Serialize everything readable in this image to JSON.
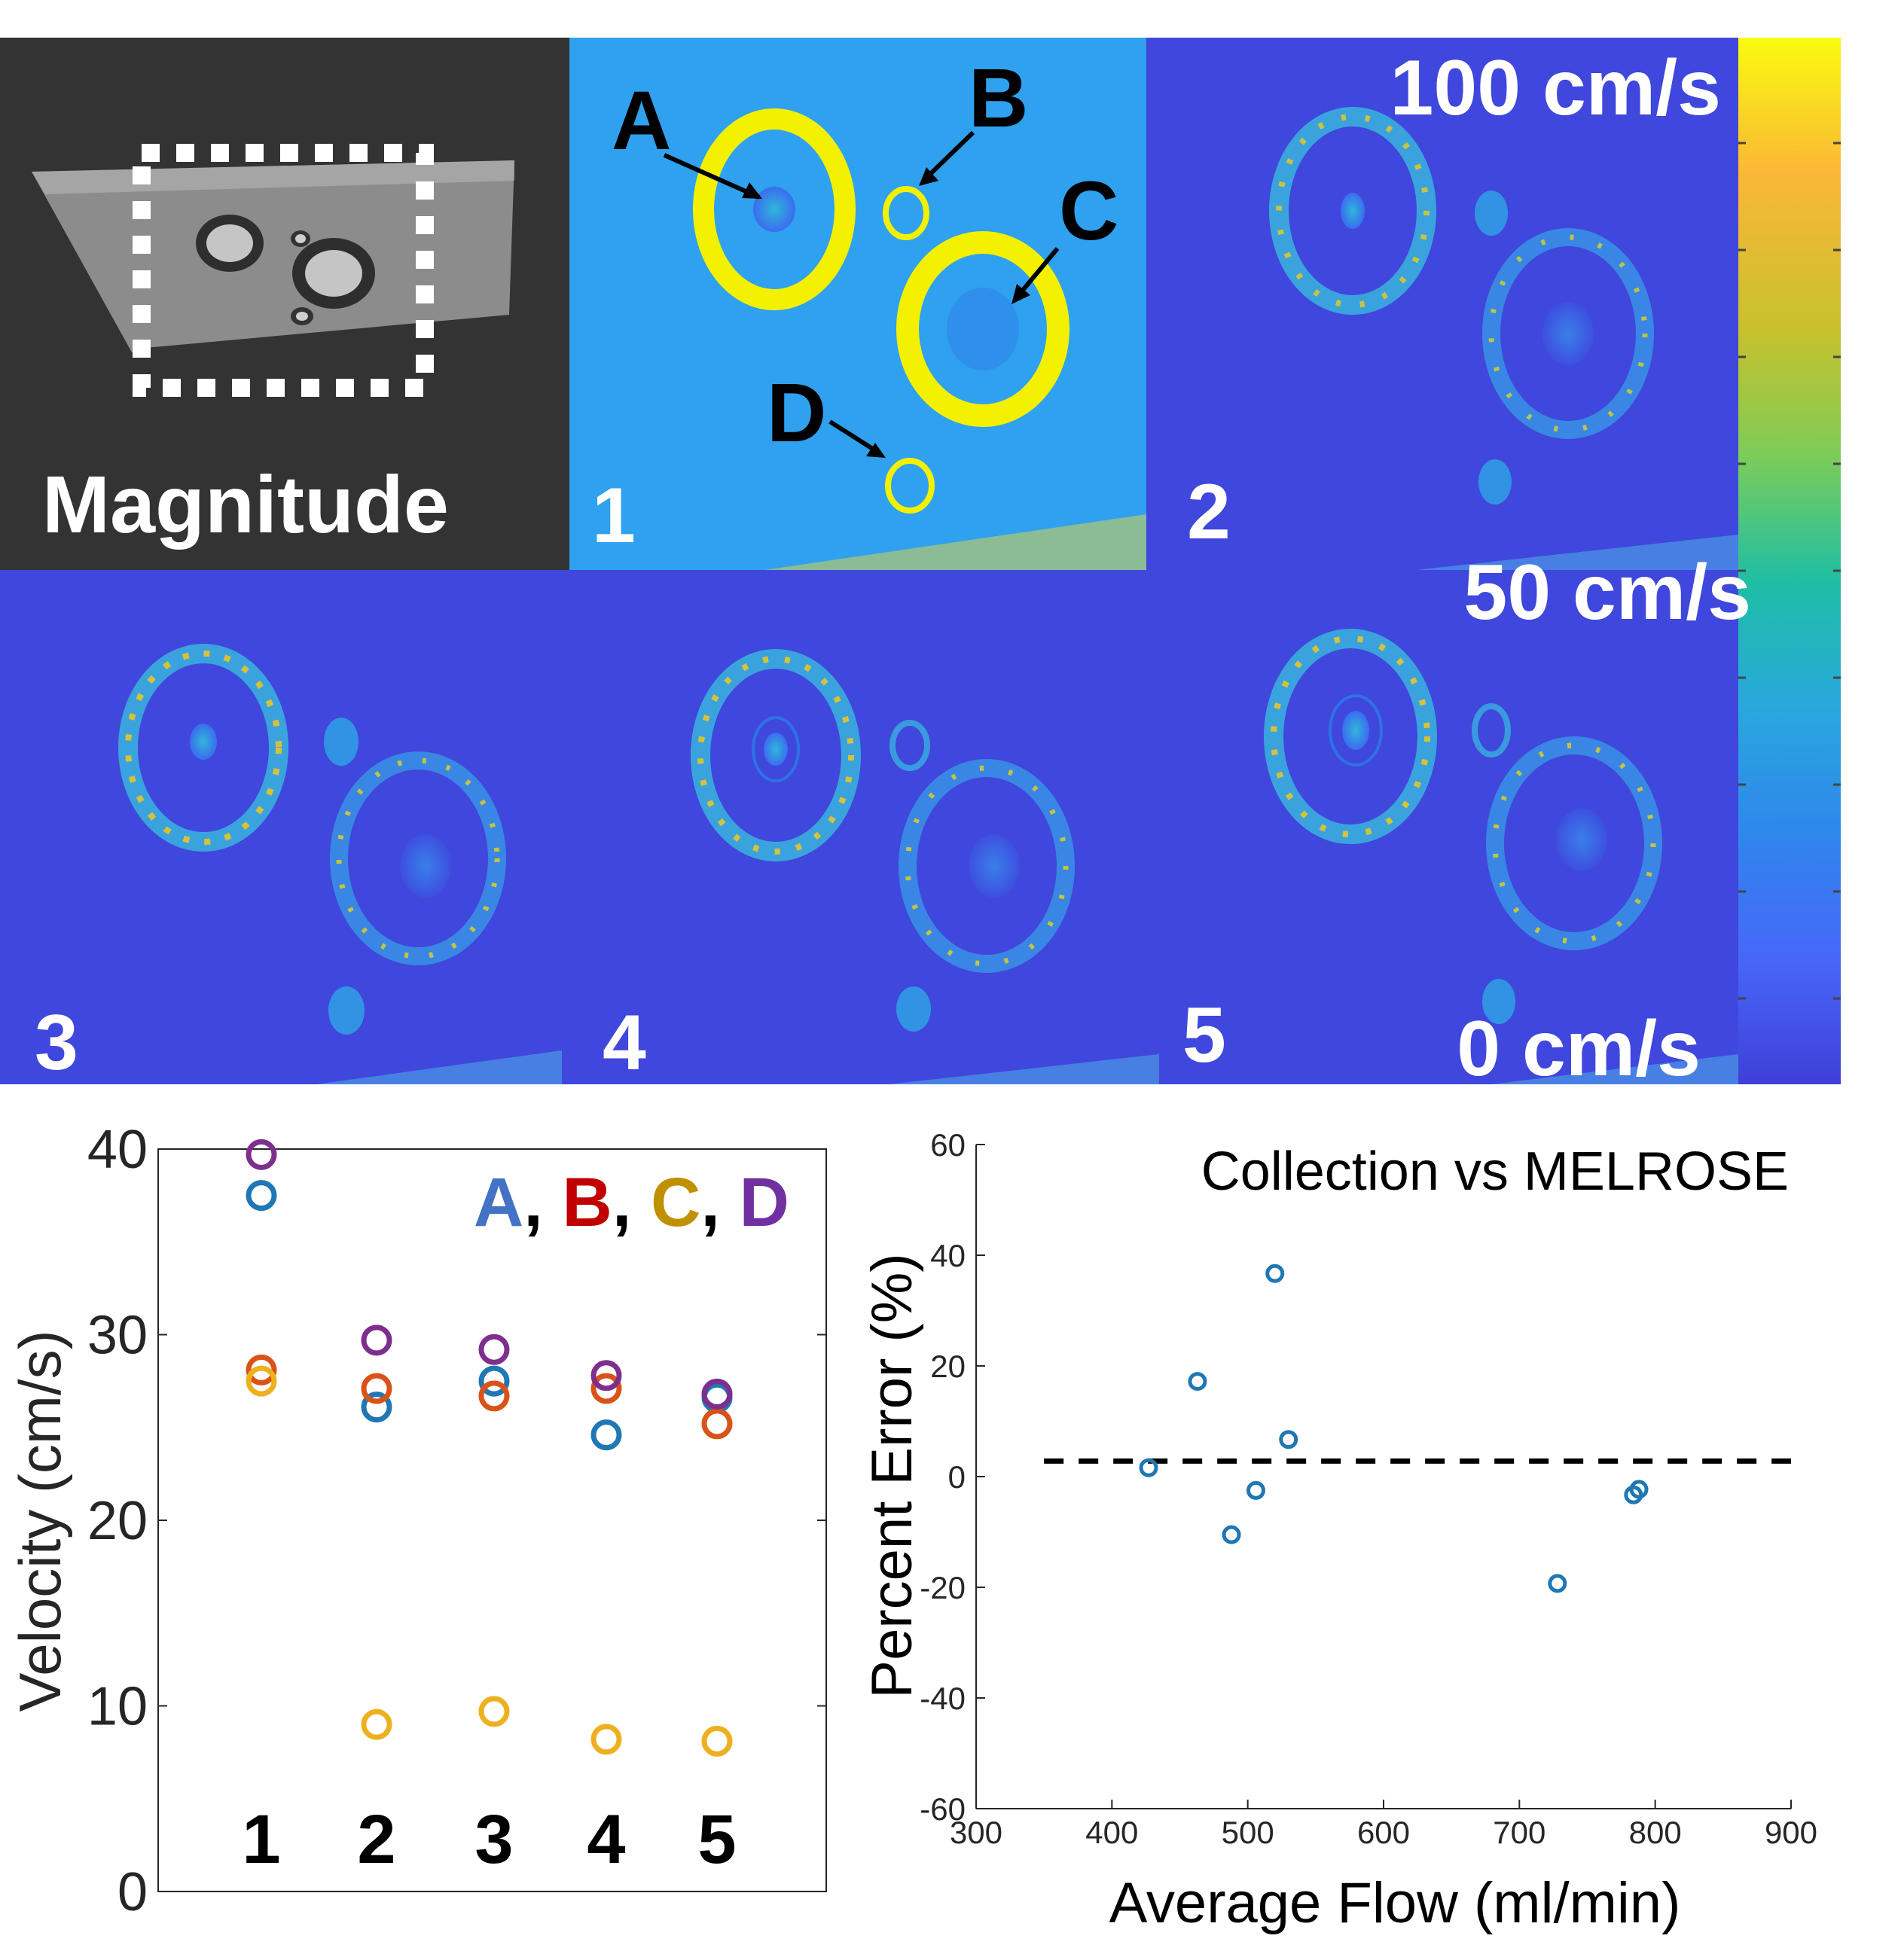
{
  "figure": {
    "panels": [
      {
        "id": "magnitude",
        "label": "Magnitude"
      },
      {
        "id": "p1",
        "label": "1"
      },
      {
        "id": "p2",
        "label": "2"
      },
      {
        "id": "p3",
        "label": "3"
      },
      {
        "id": "p4",
        "label": "4"
      },
      {
        "id": "p5",
        "label": "5"
      }
    ],
    "vessel_labels": [
      "A",
      "B",
      "C",
      "D"
    ],
    "colorbar": {
      "max_label": "100 cm/s",
      "mid_label": "50 cm/s",
      "min_label": "0 cm/s",
      "colors": [
        "#f9fb0e",
        "#fbb737",
        "#c7c12c",
        "#7ccc59",
        "#1fbea4",
        "#28a8dd",
        "#2f86ed",
        "#4767f9",
        "#3f3fd8"
      ]
    }
  },
  "colors": {
    "A": "#1f77b4",
    "B": "#d95319",
    "C": "#edb120",
    "D": "#7e2f8e",
    "legend_A": "#4472c4",
    "legend_B": "#c00000",
    "legend_C": "#bf9000",
    "legend_D": "#7030a0"
  },
  "chart_data": [
    {
      "type": "scatter",
      "title": "",
      "xlabel": "",
      "ylabel": "Velocity (cm/s)",
      "ylim": [
        0,
        40
      ],
      "yticks": [
        "0",
        "10",
        "20",
        "30",
        "40"
      ],
      "categories": [
        "1",
        "2",
        "3",
        "4",
        "5"
      ],
      "legend": [
        "A",
        "B",
        "C",
        "D"
      ],
      "series": [
        {
          "name": "A",
          "values": [
            37.5,
            26.1,
            27.5,
            24.6,
            26.6
          ]
        },
        {
          "name": "B",
          "values": [
            28.1,
            27.1,
            26.7,
            27.1,
            25.2
          ]
        },
        {
          "name": "C",
          "values": [
            27.5,
            9.0,
            9.7,
            8.2,
            8.1
          ]
        },
        {
          "name": "D",
          "values": [
            39.7,
            29.7,
            29.2,
            27.8,
            26.8
          ]
        }
      ]
    },
    {
      "type": "scatter",
      "title": "Collection vs MELROSE",
      "xlabel": "Average Flow (ml/min)",
      "ylabel": "Percent Error (%)",
      "xlim": [
        300,
        900
      ],
      "ylim": [
        -60,
        60
      ],
      "xticks": [
        "300",
        "400",
        "500",
        "600",
        "700",
        "800",
        "900"
      ],
      "yticks": [
        "-60",
        "-40",
        "-20",
        "0",
        "20",
        "40",
        "60"
      ],
      "mean_line": 2.8,
      "points": [
        {
          "x": 427,
          "y": 1.6
        },
        {
          "x": 463,
          "y": 17.2
        },
        {
          "x": 488,
          "y": -10.5
        },
        {
          "x": 506,
          "y": -2.5
        },
        {
          "x": 520,
          "y": 36.7
        },
        {
          "x": 530,
          "y": 6.7
        },
        {
          "x": 728,
          "y": -19.3
        },
        {
          "x": 784,
          "y": -3.3
        },
        {
          "x": 788,
          "y": -2.3
        }
      ]
    }
  ]
}
